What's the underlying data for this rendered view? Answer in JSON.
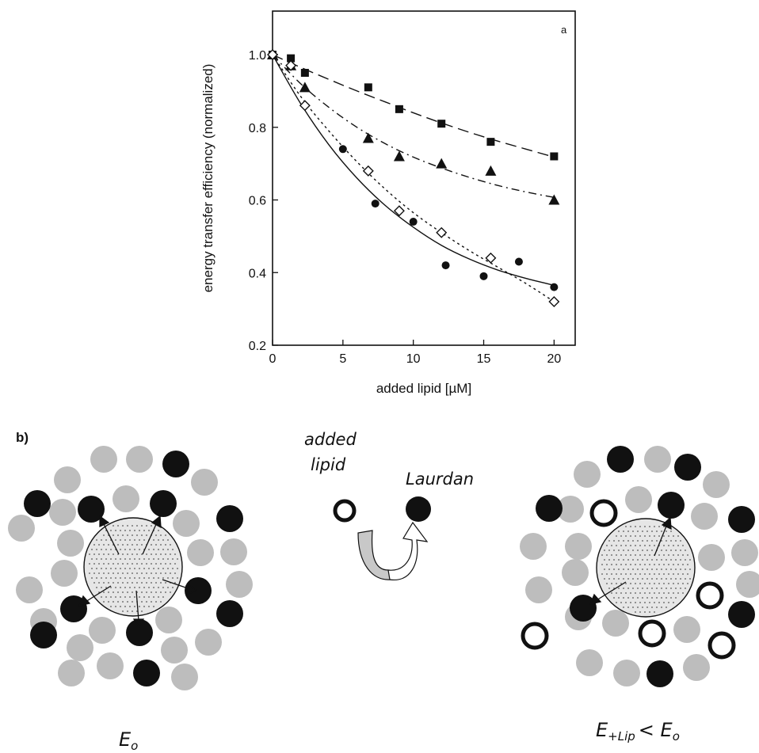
{
  "panel_a_letter": "a",
  "panel_b_letter": "b)",
  "chart_data": {
    "type": "scatter",
    "xlabel": "added lipid [µM]",
    "ylabel": "energy transfer efficiency (normalized)",
    "xlim": [
      0,
      21.5
    ],
    "ylim": [
      0.2,
      1.12
    ],
    "xticks": [
      0,
      5,
      10,
      15,
      20
    ],
    "yticks": [
      0.2,
      0.4,
      0.6,
      0.8,
      1.0
    ],
    "xtick_labels": [
      "0",
      "5",
      "10",
      "15",
      "20"
    ],
    "ytick_labels": [
      "0.2",
      "0.4",
      "0.6",
      "0.8",
      "1.0"
    ],
    "grid": false,
    "series": [
      {
        "marker": "square",
        "line": "long-dash",
        "x": [
          0,
          1.3,
          2.3,
          6.8,
          9,
          12,
          15.5,
          20
        ],
        "y": [
          1.0,
          0.99,
          0.95,
          0.91,
          0.85,
          0.81,
          0.76,
          0.72
        ],
        "fit_x": [
          0,
          2,
          4,
          6,
          8,
          10,
          12,
          14,
          16,
          18,
          20
        ],
        "fit_y": [
          1.0,
          0.965,
          0.932,
          0.9,
          0.87,
          0.84,
          0.812,
          0.786,
          0.762,
          0.74,
          0.718
        ]
      },
      {
        "marker": "triangle",
        "line": "dash-dot",
        "x": [
          0,
          1.3,
          2.3,
          6.8,
          9,
          12,
          15.5,
          20
        ],
        "y": [
          1.0,
          0.97,
          0.91,
          0.77,
          0.72,
          0.7,
          0.68,
          0.6
        ],
        "fit_x": [
          0,
          2,
          4,
          6,
          8,
          10,
          12,
          14,
          16,
          18,
          20
        ],
        "fit_y": [
          1.0,
          0.92,
          0.855,
          0.8,
          0.755,
          0.718,
          0.688,
          0.662,
          0.64,
          0.622,
          0.607
        ]
      },
      {
        "marker": "open-diamond",
        "line": "dotted",
        "x": [
          0,
          1.3,
          2.3,
          6.8,
          9,
          12,
          15.5,
          20
        ],
        "y": [
          1.0,
          0.97,
          0.86,
          0.68,
          0.57,
          0.51,
          0.44,
          0.32
        ],
        "fit_x": [
          0,
          2,
          4,
          6,
          8,
          10,
          12,
          14,
          16,
          18,
          20
        ],
        "fit_y": [
          1.0,
          0.885,
          0.79,
          0.705,
          0.63,
          0.565,
          0.51,
          0.46,
          0.415,
          0.37,
          0.32
        ]
      },
      {
        "marker": "filled-circle",
        "line": "solid",
        "x": [
          5,
          7.3,
          10,
          12.3,
          15,
          17.5,
          20
        ],
        "y": [
          0.74,
          0.59,
          0.54,
          0.42,
          0.39,
          0.43,
          0.36
        ],
        "fit_x": [
          0,
          2,
          4,
          6,
          8,
          10,
          12,
          14,
          16,
          18,
          20
        ],
        "fit_y": [
          1.0,
          0.865,
          0.752,
          0.66,
          0.585,
          0.525,
          0.475,
          0.437,
          0.407,
          0.384,
          0.365
        ]
      }
    ]
  },
  "schematic": {
    "added_lipid_label_1": "added",
    "added_lipid_label_2": "lipid",
    "laurdan_label": "Laurdan",
    "left_caption_main": "E",
    "left_caption_sub": "o",
    "right_caption_main": "E",
    "right_caption_sub": "+Lip",
    "right_caption_rel": "< E",
    "right_caption_sub2": "o",
    "colors": {
      "grey_lipid": "#bdbdbd",
      "laurdan": "#111111",
      "protein_fill": "#e6e6e6",
      "arrow_fill": "#c8c8c8"
    }
  }
}
